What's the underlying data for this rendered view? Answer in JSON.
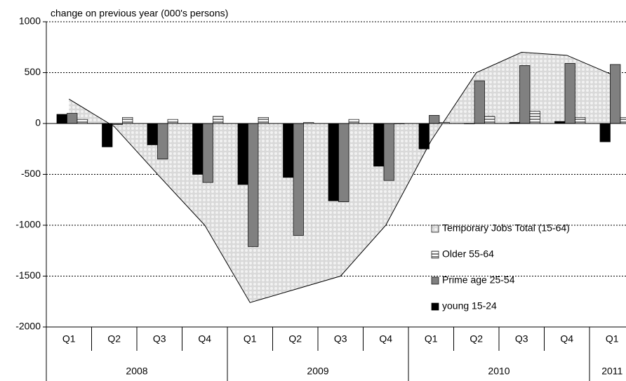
{
  "chart_data": {
    "type": "bar",
    "y_axis_label": "change on previous year (000's persons)",
    "categories": [
      "Q1",
      "Q2",
      "Q3",
      "Q4",
      "Q1",
      "Q2",
      "Q3",
      "Q4",
      "Q1",
      "Q2",
      "Q3",
      "Q4",
      "Q1"
    ],
    "category_groups": [
      {
        "label": "2008",
        "count": 4
      },
      {
        "label": "2009",
        "count": 4
      },
      {
        "label": "2010",
        "count": 4
      },
      {
        "label": "2011",
        "count": 1
      }
    ],
    "series": [
      {
        "name": "Temporary Jobs Total (15-64)",
        "type": "area",
        "color": "#d9d9d9",
        "pattern": "dots",
        "values": [
          240,
          -30,
          -520,
          -1000,
          -1760,
          -1630,
          -1500,
          -1000,
          -170,
          500,
          700,
          670,
          480
        ]
      },
      {
        "name": "Older 55-64",
        "type": "bar",
        "color": "#ffffff",
        "pattern": "stripes",
        "values": [
          40,
          60,
          40,
          70,
          60,
          10,
          40,
          0,
          10,
          70,
          120,
          60,
          60
        ]
      },
      {
        "name": "Prime age 25-54",
        "type": "bar",
        "color": "#808080",
        "values": [
          100,
          -10,
          -350,
          -580,
          -1210,
          -1100,
          -770,
          -560,
          80,
          420,
          570,
          590,
          580
        ]
      },
      {
        "name": "young 15-24",
        "type": "bar",
        "color": "#000000",
        "values": [
          90,
          -230,
          -210,
          -500,
          -600,
          -530,
          -760,
          -420,
          -250,
          0,
          10,
          20,
          -180
        ]
      }
    ],
    "ylim": [
      -2000,
      1000
    ],
    "yticks": [
      -2000,
      -1500,
      -1000,
      -500,
      0,
      500,
      1000
    ],
    "grid": true,
    "legend": "lower right"
  }
}
